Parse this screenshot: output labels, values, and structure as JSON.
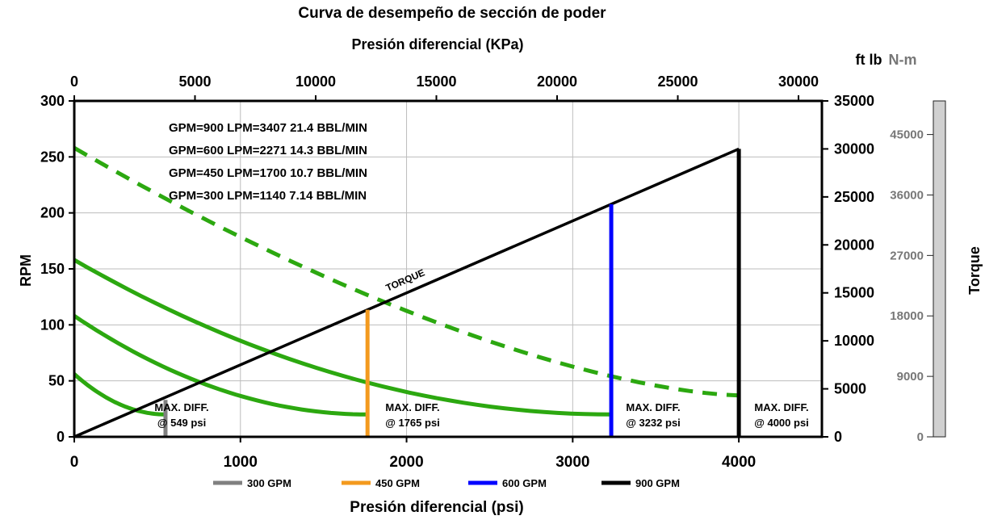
{
  "chart_data": {
    "type": "line",
    "title": "Curva de desempeño de sección de poder",
    "x_top_label": "Presión diferencial  (KPa)",
    "xlabel": "Presión diferencial (psi)",
    "ylabel": "RPM",
    "y2_unit_label": "ft lb",
    "y3_unit_label": "N-m",
    "y3_title": "Torque",
    "xlim_psi": [
      0,
      4500
    ],
    "ylim_rpm": [
      0,
      300
    ],
    "x_ticks_psi": [
      "0",
      "1000",
      "2000",
      "3000",
      "4000"
    ],
    "x_ticks_kpa": [
      "0",
      "5000",
      "10000",
      "15000",
      "20000",
      "25000",
      "30000"
    ],
    "y_ticks_rpm": [
      "0",
      "50",
      "100",
      "150",
      "200",
      "250",
      "300"
    ],
    "y2_ticks_ftlb": [
      "0",
      "5000",
      "10000",
      "15000",
      "20000",
      "25000",
      "30000",
      "35000"
    ],
    "y3_ticks_nm": [
      "0",
      "9000",
      "18000",
      "27000",
      "36000",
      "45000"
    ],
    "grid": true,
    "flow_info": [
      "GPM=900  LPM=3407  21.4 BBL/MIN",
      "GPM=600  LPM=2271  14.3 BBL/MIN",
      "GPM=450  LPM=1700  10.7 BBL/MIN",
      "GPM=300  LPM=1140  7.14 BBL/MIN"
    ],
    "torque_label": "TORQUE",
    "torque_line": {
      "x_psi": [
        0,
        4000
      ],
      "torque_ftlb": [
        0,
        30000
      ]
    },
    "series": [
      {
        "name": "300 GPM",
        "color": "#808080",
        "max_psi": 549,
        "rpm_start": 56,
        "rpm_end": 20,
        "max_diff_label": "MAX. DIFF.",
        "at_label": "@ 549 psi"
      },
      {
        "name": "450 GPM",
        "color": "#f39a1e",
        "max_psi": 1765,
        "rpm_start": 108,
        "rpm_end": 20,
        "max_diff_label": "MAX. DIFF.",
        "at_label": "@ 1765 psi"
      },
      {
        "name": "600 GPM",
        "color": "#0000ff",
        "max_psi": 3232,
        "rpm_start": 158,
        "rpm_end": 20,
        "max_diff_label": "MAX. DIFF.",
        "at_label": "@ 3232 psi"
      },
      {
        "name": "900 GPM",
        "color": "#000000",
        "max_psi": 4000,
        "rpm_start": 258,
        "rpm_end": 37,
        "dashed": true,
        "max_diff_label": "MAX. DIFF.",
        "at_label": "@ 4000 psi"
      }
    ],
    "curve_color": "#2ca810"
  }
}
